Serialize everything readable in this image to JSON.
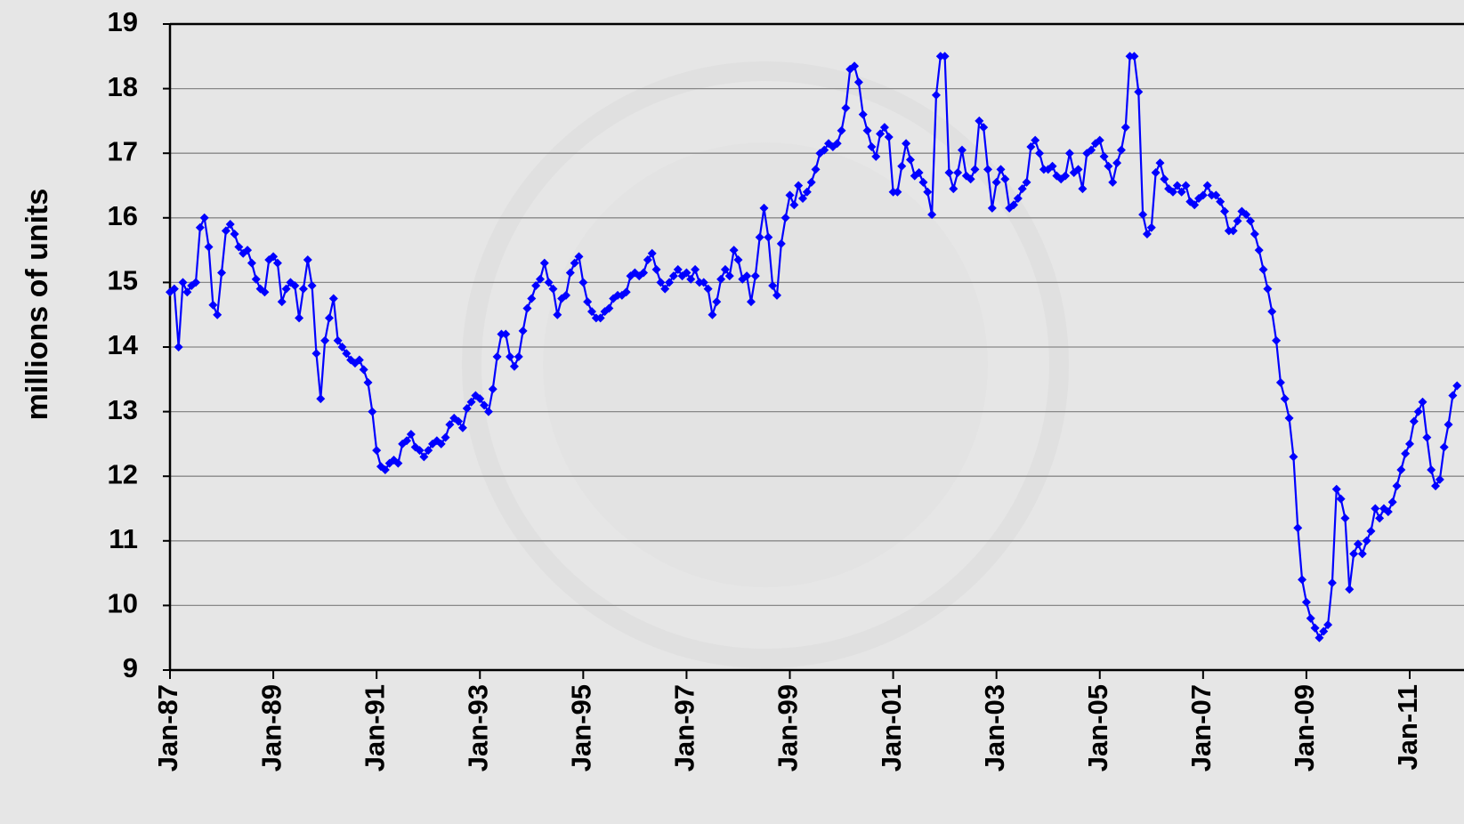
{
  "chart_data": {
    "type": "line",
    "y_label": "millions of units",
    "categories": [
      "Jan-87",
      null,
      null,
      null,
      null,
      null,
      null,
      null,
      null,
      null,
      null,
      null,
      null,
      null,
      null,
      null,
      null,
      null,
      null,
      null,
      null,
      null,
      null,
      null,
      "Jan-89",
      null,
      null,
      null,
      null,
      null,
      null,
      null,
      null,
      null,
      null,
      null,
      null,
      null,
      null,
      null,
      null,
      null,
      null,
      null,
      null,
      null,
      null,
      null,
      "Jan-91",
      null,
      null,
      null,
      null,
      null,
      null,
      null,
      null,
      null,
      null,
      null,
      null,
      null,
      null,
      null,
      null,
      null,
      null,
      null,
      null,
      null,
      null,
      null,
      "Jan-93",
      null,
      null,
      null,
      null,
      null,
      null,
      null,
      null,
      null,
      null,
      null,
      null,
      null,
      null,
      null,
      null,
      null,
      null,
      null,
      null,
      null,
      null,
      null,
      "Jan-95",
      null,
      null,
      null,
      null,
      null,
      null,
      null,
      null,
      null,
      null,
      null,
      null,
      null,
      null,
      null,
      null,
      null,
      null,
      null,
      null,
      null,
      null,
      null,
      "Jan-97",
      null,
      null,
      null,
      null,
      null,
      null,
      null,
      null,
      null,
      null,
      null,
      null,
      null,
      null,
      null,
      null,
      null,
      null,
      null,
      null,
      null,
      null,
      null,
      "Jan-99",
      null,
      null,
      null,
      null,
      null,
      null,
      null,
      null,
      null,
      null,
      null,
      null,
      null,
      null,
      null,
      null,
      null,
      null,
      null,
      null,
      null,
      null,
      null,
      "Jan-01",
      null,
      null,
      null,
      null,
      null,
      null,
      null,
      null,
      null,
      null,
      null,
      null,
      null,
      null,
      null,
      null,
      null,
      null,
      null,
      null,
      null,
      null,
      null,
      "Jan-03",
      null,
      null,
      null,
      null,
      null,
      null,
      null,
      null,
      null,
      null,
      null,
      null,
      null,
      null,
      null,
      null,
      null,
      null,
      null,
      null,
      null,
      null,
      null,
      "Jan-05",
      null,
      null,
      null,
      null,
      null,
      null,
      null,
      null,
      null,
      null,
      null,
      null,
      null,
      null,
      null,
      null,
      null,
      null,
      null,
      null,
      null,
      null,
      null,
      "Jan-07",
      null,
      null,
      null,
      null,
      null,
      null,
      null,
      null,
      null,
      null,
      null,
      null,
      null,
      null,
      null,
      null,
      null,
      null,
      null,
      null,
      null,
      null,
      null,
      "Jan-09",
      null,
      null,
      null,
      null,
      null,
      null,
      null,
      null,
      null,
      null,
      null,
      null,
      null,
      null,
      null,
      null,
      null,
      null,
      null,
      null,
      null,
      null,
      null,
      "Jan-11",
      null,
      null,
      null,
      null,
      null,
      null,
      null,
      null,
      null,
      null,
      null
    ],
    "series": [
      {
        "color": "#0000ff",
        "values": [
          14.85,
          14.9,
          14.0,
          15.0,
          14.85,
          14.95,
          15.0,
          15.85,
          16.0,
          15.55,
          14.65,
          14.5,
          15.15,
          15.8,
          15.9,
          15.75,
          15.55,
          15.45,
          15.5,
          15.3,
          15.05,
          14.9,
          14.85,
          15.35,
          15.4,
          15.3,
          14.7,
          14.9,
          15.0,
          14.95,
          14.45,
          14.9,
          15.35,
          14.95,
          13.9,
          13.2,
          14.1,
          14.45,
          14.75,
          14.1,
          14.0,
          13.9,
          13.8,
          13.75,
          13.8,
          13.65,
          13.45,
          13.0,
          12.4,
          12.15,
          12.1,
          12.2,
          12.25,
          12.2,
          12.5,
          12.55,
          12.65,
          12.45,
          12.4,
          12.3,
          12.4,
          12.5,
          12.55,
          12.5,
          12.6,
          12.8,
          12.9,
          12.85,
          12.75,
          13.05,
          13.15,
          13.25,
          13.2,
          13.1,
          13.0,
          13.35,
          13.85,
          14.2,
          14.2,
          13.85,
          13.7,
          13.85,
          14.25,
          14.6,
          14.75,
          14.95,
          15.05,
          15.3,
          15.0,
          14.9,
          14.5,
          14.75,
          14.8,
          15.15,
          15.3,
          15.4,
          15.0,
          14.7,
          14.55,
          14.45,
          14.45,
          14.55,
          14.6,
          14.75,
          14.8,
          14.8,
          14.85,
          15.1,
          15.15,
          15.1,
          15.15,
          15.35,
          15.45,
          15.2,
          15.0,
          14.9,
          15.0,
          15.1,
          15.2,
          15.1,
          15.15,
          15.05,
          15.2,
          15.0,
          15.0,
          14.9,
          14.5,
          14.7,
          15.05,
          15.2,
          15.1,
          15.5,
          15.35,
          15.05,
          15.1,
          14.7,
          15.1,
          15.7,
          16.15,
          15.7,
          14.95,
          14.8,
          15.6,
          16.0,
          16.35,
          16.2,
          16.5,
          16.3,
          16.4,
          16.55,
          16.75,
          17.0,
          17.05,
          17.15,
          17.1,
          17.15,
          17.35,
          17.7,
          18.3,
          18.35,
          18.1,
          17.6,
          17.35,
          17.1,
          16.95,
          17.3,
          17.4,
          17.25,
          16.4,
          16.4,
          16.8,
          17.15,
          16.9,
          16.65,
          16.7,
          16.55,
          16.4,
          16.05,
          17.9,
          18.5,
          18.5,
          16.7,
          16.45,
          16.7,
          17.05,
          16.65,
          16.6,
          16.75,
          17.5,
          17.4,
          16.75,
          16.15,
          16.55,
          16.75,
          16.6,
          16.15,
          16.2,
          16.3,
          16.45,
          16.55,
          17.1,
          17.2,
          17.0,
          16.75,
          16.75,
          16.8,
          16.65,
          16.6,
          16.65,
          17.0,
          16.7,
          16.75,
          16.45,
          17.0,
          17.05,
          17.15,
          17.2,
          16.95,
          16.8,
          16.55,
          16.85,
          17.05,
          17.4,
          18.5,
          18.5,
          17.95,
          16.05,
          15.75,
          15.85,
          16.7,
          16.85,
          16.6,
          16.45,
          16.4,
          16.5,
          16.4,
          16.5,
          16.25,
          16.2,
          16.3,
          16.35,
          16.5,
          16.35,
          16.35,
          16.25,
          16.1,
          15.8,
          15.8,
          15.95,
          16.1,
          16.05,
          15.95,
          15.75,
          15.5,
          15.2,
          14.9,
          14.55,
          14.1,
          13.45,
          13.2,
          12.9,
          12.3,
          11.2,
          10.4,
          10.05,
          9.8,
          9.65,
          9.5,
          9.6,
          9.7,
          10.35,
          11.8,
          11.65,
          11.35,
          10.25,
          10.8,
          10.95,
          10.8,
          11.0,
          11.15,
          11.5,
          11.35,
          11.5,
          11.45,
          11.6,
          11.85,
          12.1,
          12.35,
          12.5,
          12.85,
          13.0,
          13.15,
          12.6,
          12.1,
          11.85,
          11.95,
          12.45,
          12.8,
          13.25,
          13.4
        ]
      }
    ],
    "ylim": [
      9,
      19
    ],
    "yticks": [
      9,
      10,
      11,
      12,
      13,
      14,
      15,
      16,
      17,
      18,
      19
    ],
    "grid": true
  }
}
